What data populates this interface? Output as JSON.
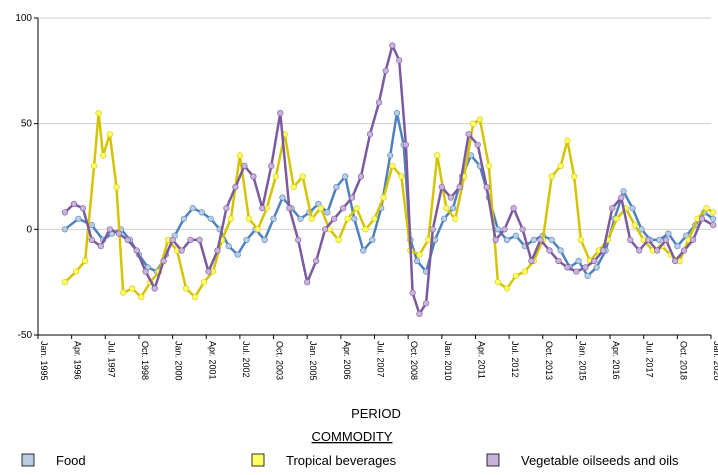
{
  "chart_data": {
    "type": "line",
    "xlabel": "PERIOD",
    "legend_title": "COMMODITY",
    "ylim": [
      -50,
      100
    ],
    "yticks": [
      -50,
      0,
      50,
      100
    ],
    "xlim": [
      "Jan. 1995",
      "Jan. 2020"
    ],
    "xticks": [
      "Jan. 1995",
      "Apr. 1996",
      "Jul. 1997",
      "Oct. 1998",
      "Jan. 2000",
      "Apr. 2001",
      "Jul. 2002",
      "Oct. 2003",
      "Jan. 2005",
      "Apr. 2006",
      "Jul. 2007",
      "Oct. 2008",
      "Jan. 2010",
      "Apr. 2011",
      "Jul. 2012",
      "Oct. 2013",
      "Jan. 2015",
      "Apr. 2016",
      "Jul. 2017",
      "Oct. 2018",
      "Jan. 2020"
    ],
    "grid": true,
    "legend_position": "bottom",
    "series": [
      {
        "name": "Food",
        "line_color": "#4f81bd",
        "marker_color": "#b8cce4",
        "points": [
          [
            "1996-01",
            0
          ],
          [
            "1996-07",
            5
          ],
          [
            "1997-01",
            2
          ],
          [
            "1997-06",
            -5
          ],
          [
            "1997-10",
            -2
          ],
          [
            "1998-02",
            0
          ],
          [
            "1998-06",
            -5
          ],
          [
            "1998-10",
            -12
          ],
          [
            "1999-02",
            -18
          ],
          [
            "1999-06",
            -20
          ],
          [
            "1999-10",
            -12
          ],
          [
            "2000-02",
            -3
          ],
          [
            "2000-06",
            5
          ],
          [
            "2000-10",
            10
          ],
          [
            "2001-02",
            8
          ],
          [
            "2001-06",
            5
          ],
          [
            "2001-10",
            0
          ],
          [
            "2002-02",
            -8
          ],
          [
            "2002-06",
            -12
          ],
          [
            "2002-10",
            -5
          ],
          [
            "2003-02",
            0
          ],
          [
            "2003-06",
            -5
          ],
          [
            "2003-10",
            5
          ],
          [
            "2004-02",
            15
          ],
          [
            "2004-06",
            10
          ],
          [
            "2004-10",
            5
          ],
          [
            "2005-02",
            8
          ],
          [
            "2005-06",
            12
          ],
          [
            "2005-10",
            8
          ],
          [
            "2006-02",
            20
          ],
          [
            "2006-06",
            25
          ],
          [
            "2006-10",
            5
          ],
          [
            "2007-02",
            -10
          ],
          [
            "2007-06",
            -5
          ],
          [
            "2007-10",
            10
          ],
          [
            "2008-02",
            35
          ],
          [
            "2008-05",
            55
          ],
          [
            "2008-08",
            40
          ],
          [
            "2008-11",
            -5
          ],
          [
            "2009-02",
            -15
          ],
          [
            "2009-06",
            -20
          ],
          [
            "2009-10",
            -5
          ],
          [
            "2010-02",
            5
          ],
          [
            "2010-06",
            10
          ],
          [
            "2010-10",
            25
          ],
          [
            "2011-02",
            35
          ],
          [
            "2011-06",
            30
          ],
          [
            "2011-10",
            15
          ],
          [
            "2012-02",
            0
          ],
          [
            "2012-06",
            -5
          ],
          [
            "2012-10",
            -3
          ],
          [
            "2013-02",
            -8
          ],
          [
            "2013-06",
            -5
          ],
          [
            "2013-10",
            -3
          ],
          [
            "2014-02",
            -5
          ],
          [
            "2014-06",
            -10
          ],
          [
            "2014-10",
            -18
          ],
          [
            "2015-02",
            -15
          ],
          [
            "2015-06",
            -22
          ],
          [
            "2015-10",
            -18
          ],
          [
            "2016-02",
            -10
          ],
          [
            "2016-06",
            5
          ],
          [
            "2016-10",
            18
          ],
          [
            "2017-02",
            10
          ],
          [
            "2017-06",
            0
          ],
          [
            "2017-10",
            -5
          ],
          [
            "2018-02",
            -5
          ],
          [
            "2018-06",
            -2
          ],
          [
            "2018-10",
            -8
          ],
          [
            "2019-02",
            -3
          ],
          [
            "2019-06",
            2
          ],
          [
            "2019-10",
            8
          ],
          [
            "2020-02",
            5
          ]
        ]
      },
      {
        "name": "Tropical beverages",
        "line_color": "#d4c400",
        "marker_color": "#ffff66",
        "points": [
          [
            "1996-01",
            -25
          ],
          [
            "1996-06",
            -20
          ],
          [
            "1996-10",
            -15
          ],
          [
            "1997-02",
            30
          ],
          [
            "1997-04",
            55
          ],
          [
            "1997-06",
            35
          ],
          [
            "1997-09",
            45
          ],
          [
            "1997-12",
            20
          ],
          [
            "1998-03",
            -30
          ],
          [
            "1998-07",
            -28
          ],
          [
            "1998-11",
            -32
          ],
          [
            "1999-03",
            -25
          ],
          [
            "1999-07",
            -20
          ],
          [
            "1999-11",
            -5
          ],
          [
            "2000-03",
            -10
          ],
          [
            "2000-07",
            -28
          ],
          [
            "2000-11",
            -32
          ],
          [
            "2001-03",
            -25
          ],
          [
            "2001-07",
            -20
          ],
          [
            "2001-11",
            -5
          ],
          [
            "2002-03",
            5
          ],
          [
            "2002-07",
            35
          ],
          [
            "2002-11",
            5
          ],
          [
            "2003-03",
            0
          ],
          [
            "2003-07",
            10
          ],
          [
            "2003-11",
            25
          ],
          [
            "2004-03",
            45
          ],
          [
            "2004-07",
            20
          ],
          [
            "2004-11",
            25
          ],
          [
            "2005-03",
            5
          ],
          [
            "2005-07",
            10
          ],
          [
            "2005-11",
            0
          ],
          [
            "2006-03",
            -5
          ],
          [
            "2006-07",
            5
          ],
          [
            "2006-11",
            10
          ],
          [
            "2007-03",
            0
          ],
          [
            "2007-07",
            5
          ],
          [
            "2007-11",
            15
          ],
          [
            "2008-03",
            30
          ],
          [
            "2008-07",
            25
          ],
          [
            "2008-11",
            -10
          ],
          [
            "2009-03",
            -12
          ],
          [
            "2009-07",
            -5
          ],
          [
            "2009-11",
            35
          ],
          [
            "2010-03",
            10
          ],
          [
            "2010-07",
            5
          ],
          [
            "2010-11",
            25
          ],
          [
            "2011-03",
            50
          ],
          [
            "2011-06",
            52
          ],
          [
            "2011-10",
            30
          ],
          [
            "2012-02",
            -25
          ],
          [
            "2012-06",
            -28
          ],
          [
            "2012-10",
            -22
          ],
          [
            "2013-02",
            -20
          ],
          [
            "2013-06",
            -15
          ],
          [
            "2013-10",
            -5
          ],
          [
            "2014-02",
            25
          ],
          [
            "2014-06",
            30
          ],
          [
            "2014-09",
            42
          ],
          [
            "2014-12",
            25
          ],
          [
            "2015-03",
            -5
          ],
          [
            "2015-07",
            -15
          ],
          [
            "2015-11",
            -10
          ],
          [
            "2016-03",
            -5
          ],
          [
            "2016-07",
            5
          ],
          [
            "2016-11",
            10
          ],
          [
            "2017-03",
            2
          ],
          [
            "2017-07",
            -5
          ],
          [
            "2017-11",
            -10
          ],
          [
            "2018-03",
            -8
          ],
          [
            "2018-07",
            -12
          ],
          [
            "2018-11",
            -15
          ],
          [
            "2019-03",
            -5
          ],
          [
            "2019-07",
            5
          ],
          [
            "2019-11",
            10
          ],
          [
            "2020-02",
            8
          ]
        ]
      },
      {
        "name": "Vegetable oilseeds and oils",
        "line_color": "#7b5a9e",
        "marker_color": "#c9b3dd",
        "points": [
          [
            "1996-01",
            8
          ],
          [
            "1996-05",
            12
          ],
          [
            "1996-09",
            10
          ],
          [
            "1997-01",
            -5
          ],
          [
            "1997-05",
            -8
          ],
          [
            "1997-09",
            0
          ],
          [
            "1998-01",
            -2
          ],
          [
            "1998-05",
            -5
          ],
          [
            "1998-09",
            -10
          ],
          [
            "1999-01",
            -20
          ],
          [
            "1999-05",
            -28
          ],
          [
            "1999-09",
            -15
          ],
          [
            "2000-01",
            -5
          ],
          [
            "2000-05",
            -10
          ],
          [
            "2000-09",
            -5
          ],
          [
            "2001-01",
            -5
          ],
          [
            "2001-05",
            -20
          ],
          [
            "2001-09",
            -10
          ],
          [
            "2002-01",
            10
          ],
          [
            "2002-05",
            20
          ],
          [
            "2002-09",
            30
          ],
          [
            "2003-01",
            25
          ],
          [
            "2003-05",
            10
          ],
          [
            "2003-09",
            30
          ],
          [
            "2004-01",
            55
          ],
          [
            "2004-05",
            10
          ],
          [
            "2004-09",
            -5
          ],
          [
            "2005-01",
            -25
          ],
          [
            "2005-05",
            -15
          ],
          [
            "2005-09",
            0
          ],
          [
            "2006-01",
            5
          ],
          [
            "2006-05",
            10
          ],
          [
            "2006-09",
            15
          ],
          [
            "2007-01",
            25
          ],
          [
            "2007-05",
            45
          ],
          [
            "2007-09",
            60
          ],
          [
            "2007-12",
            75
          ],
          [
            "2008-03",
            87
          ],
          [
            "2008-06",
            80
          ],
          [
            "2008-09",
            40
          ],
          [
            "2008-12",
            -30
          ],
          [
            "2009-03",
            -40
          ],
          [
            "2009-06",
            -35
          ],
          [
            "2009-09",
            0
          ],
          [
            "2010-01",
            20
          ],
          [
            "2010-05",
            15
          ],
          [
            "2010-09",
            20
          ],
          [
            "2011-01",
            45
          ],
          [
            "2011-05",
            40
          ],
          [
            "2011-09",
            20
          ],
          [
            "2012-01",
            -5
          ],
          [
            "2012-05",
            0
          ],
          [
            "2012-09",
            10
          ],
          [
            "2013-01",
            0
          ],
          [
            "2013-05",
            -15
          ],
          [
            "2013-09",
            -5
          ],
          [
            "2014-01",
            -10
          ],
          [
            "2014-05",
            -15
          ],
          [
            "2014-09",
            -18
          ],
          [
            "2015-01",
            -20
          ],
          [
            "2015-05",
            -18
          ],
          [
            "2015-09",
            -15
          ],
          [
            "2016-01",
            -10
          ],
          [
            "2016-05",
            10
          ],
          [
            "2016-09",
            15
          ],
          [
            "2017-01",
            -5
          ],
          [
            "2017-05",
            -10
          ],
          [
            "2017-09",
            -5
          ],
          [
            "2018-01",
            -10
          ],
          [
            "2018-05",
            -5
          ],
          [
            "2018-09",
            -15
          ],
          [
            "2019-01",
            -10
          ],
          [
            "2019-05",
            -5
          ],
          [
            "2019-09",
            5
          ],
          [
            "2020-02",
            2
          ]
        ]
      }
    ]
  }
}
